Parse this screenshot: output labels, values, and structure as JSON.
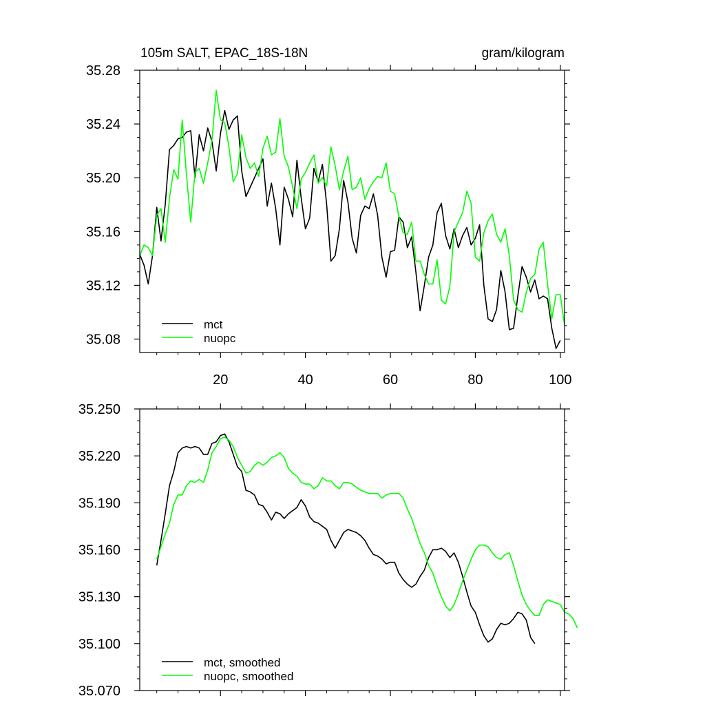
{
  "chart_data": [
    {
      "type": "line",
      "title": "105m SALT, EPAC_18S-18N",
      "units": "gram/kilogram",
      "xlim": [
        1,
        101
      ],
      "ylim": [
        35.07,
        35.28
      ],
      "xticks": [
        20,
        40,
        60,
        80,
        100
      ],
      "yticks": [
        35.08,
        35.12,
        35.16,
        35.2,
        35.24,
        35.28
      ],
      "ytick_labels": [
        "35.08",
        "35.12",
        "35.16",
        "35.20",
        "35.24",
        "35.28"
      ],
      "legend_position": "bottom-left",
      "series": [
        {
          "name": "mct",
          "color": "#000000",
          "x_start": 1,
          "values": [
            35.143,
            35.135,
            35.121,
            35.142,
            35.178,
            35.153,
            35.18,
            35.221,
            35.224,
            35.229,
            35.23,
            35.234,
            35.235,
            35.2,
            35.232,
            35.22,
            35.237,
            35.227,
            35.205,
            35.233,
            35.25,
            35.236,
            35.243,
            35.246,
            35.205,
            35.186,
            35.193,
            35.2,
            35.207,
            35.214,
            35.179,
            35.196,
            35.177,
            35.15,
            35.193,
            35.184,
            35.171,
            35.213,
            35.185,
            35.162,
            35.17,
            35.207,
            35.197,
            35.21,
            35.18,
            35.138,
            35.142,
            35.162,
            35.198,
            35.182,
            35.155,
            35.144,
            35.172,
            35.179,
            35.177,
            35.188,
            35.172,
            35.141,
            35.126,
            35.145,
            35.146,
            35.171,
            35.167,
            35.148,
            35.156,
            35.13,
            35.101,
            35.12,
            35.141,
            35.15,
            35.174,
            35.181,
            35.157,
            35.147,
            35.162,
            35.148,
            35.157,
            35.163,
            35.15,
            35.155,
            35.165,
            35.12,
            35.095,
            35.093,
            35.102,
            35.131,
            35.115,
            35.087,
            35.088,
            35.112,
            35.134,
            35.126,
            35.115,
            35.124,
            35.11,
            35.112,
            35.11,
            35.088,
            35.073,
            35.079
          ]
        },
        {
          "name": "nuopc",
          "color": "#00ff00",
          "x_start": 1,
          "values": [
            35.142,
            35.15,
            35.148,
            35.142,
            35.172,
            35.177,
            35.152,
            35.185,
            35.206,
            35.199,
            35.243,
            35.202,
            35.167,
            35.204,
            35.207,
            35.196,
            35.211,
            35.228,
            35.265,
            35.243,
            35.241,
            35.223,
            35.197,
            35.203,
            35.232,
            35.215,
            35.207,
            35.211,
            35.201,
            35.222,
            35.231,
            35.217,
            35.219,
            35.244,
            35.216,
            35.208,
            35.193,
            35.177,
            35.199,
            35.204,
            35.211,
            35.217,
            35.196,
            35.2,
            35.194,
            35.223,
            35.209,
            35.191,
            35.205,
            35.216,
            35.191,
            35.193,
            35.2,
            35.184,
            35.192,
            35.197,
            35.201,
            35.2,
            35.211,
            35.19,
            35.188,
            35.171,
            35.159,
            35.158,
            35.167,
            35.138,
            35.138,
            35.128,
            35.121,
            35.121,
            35.139,
            35.109,
            35.106,
            35.119,
            35.16,
            35.167,
            35.174,
            35.19,
            35.181,
            35.141,
            35.138,
            35.159,
            35.168,
            35.173,
            35.158,
            35.152,
            35.162,
            35.142,
            35.109,
            35.102,
            35.1,
            35.115,
            35.125,
            35.128,
            35.147,
            35.152,
            35.121,
            35.095,
            35.113,
            35.113,
            35.09
          ]
        }
      ]
    },
    {
      "type": "line",
      "title": "",
      "xlim": [
        1,
        101
      ],
      "ylim": [
        35.07,
        35.25
      ],
      "xticks": [
        20,
        40,
        60,
        80,
        100
      ],
      "yticks": [
        35.07,
        35.1,
        35.13,
        35.16,
        35.19,
        35.22,
        35.25
      ],
      "ytick_labels": [
        "35.070",
        "35.100",
        "35.130",
        "35.160",
        "35.190",
        "35.220",
        "35.250"
      ],
      "legend_position": "bottom-left",
      "series": [
        {
          "name": "mct, smoothed",
          "color": "#000000",
          "x_start": 5,
          "values": [
            35.15,
            35.166,
            35.183,
            35.201,
            35.21,
            35.222,
            35.225,
            35.226,
            35.225,
            35.226,
            35.225,
            35.221,
            35.221,
            35.228,
            35.229,
            35.233,
            35.234,
            35.229,
            35.221,
            35.213,
            35.21,
            35.198,
            35.197,
            35.195,
            35.189,
            35.188,
            35.184,
            35.179,
            35.184,
            35.183,
            35.18,
            35.183,
            35.185,
            35.187,
            35.192,
            35.188,
            35.181,
            35.178,
            35.177,
            35.175,
            35.173,
            35.166,
            35.161,
            35.166,
            35.171,
            35.173,
            35.172,
            35.171,
            35.169,
            35.166,
            35.161,
            35.157,
            35.156,
            35.154,
            35.151,
            35.152,
            35.152,
            35.145,
            35.141,
            35.138,
            35.136,
            35.138,
            35.143,
            35.147,
            35.155,
            35.16,
            35.16,
            35.161,
            35.159,
            35.155,
            35.158,
            35.152,
            35.143,
            35.133,
            35.124,
            35.12,
            35.112,
            35.105,
            35.101,
            35.103,
            35.109,
            35.113,
            35.112,
            35.113,
            35.116,
            35.12,
            35.119,
            35.115,
            35.104,
            35.1
          ]
        },
        {
          "name": "nuopc, smoothed",
          "color": "#00ff00",
          "x_start": 5,
          "values": [
            35.154,
            35.162,
            35.17,
            35.177,
            35.189,
            35.195,
            35.195,
            35.201,
            35.204,
            35.203,
            35.205,
            35.203,
            35.211,
            35.222,
            35.226,
            35.231,
            35.232,
            35.23,
            35.226,
            35.219,
            35.214,
            35.209,
            35.21,
            35.214,
            35.216,
            35.214,
            35.216,
            35.219,
            35.22,
            35.222,
            35.219,
            35.212,
            35.209,
            35.207,
            35.203,
            35.202,
            35.202,
            35.199,
            35.201,
            35.206,
            35.204,
            35.204,
            35.201,
            35.199,
            35.203,
            35.203,
            35.202,
            35.2,
            35.198,
            35.197,
            35.196,
            35.196,
            35.196,
            35.193,
            35.195,
            35.196,
            35.196,
            35.196,
            35.193,
            35.186,
            35.18,
            35.172,
            35.164,
            35.158,
            35.15,
            35.145,
            35.137,
            35.13,
            35.124,
            35.121,
            35.125,
            35.132,
            35.14,
            35.147,
            35.154,
            35.16,
            35.163,
            35.163,
            35.162,
            35.158,
            35.155,
            35.154,
            35.157,
            35.158,
            35.15,
            35.14,
            35.131,
            35.125,
            35.121,
            35.118,
            35.118,
            35.125,
            35.128,
            35.127,
            35.126,
            35.125,
            35.12,
            35.119,
            35.116,
            35.11
          ]
        }
      ]
    }
  ]
}
